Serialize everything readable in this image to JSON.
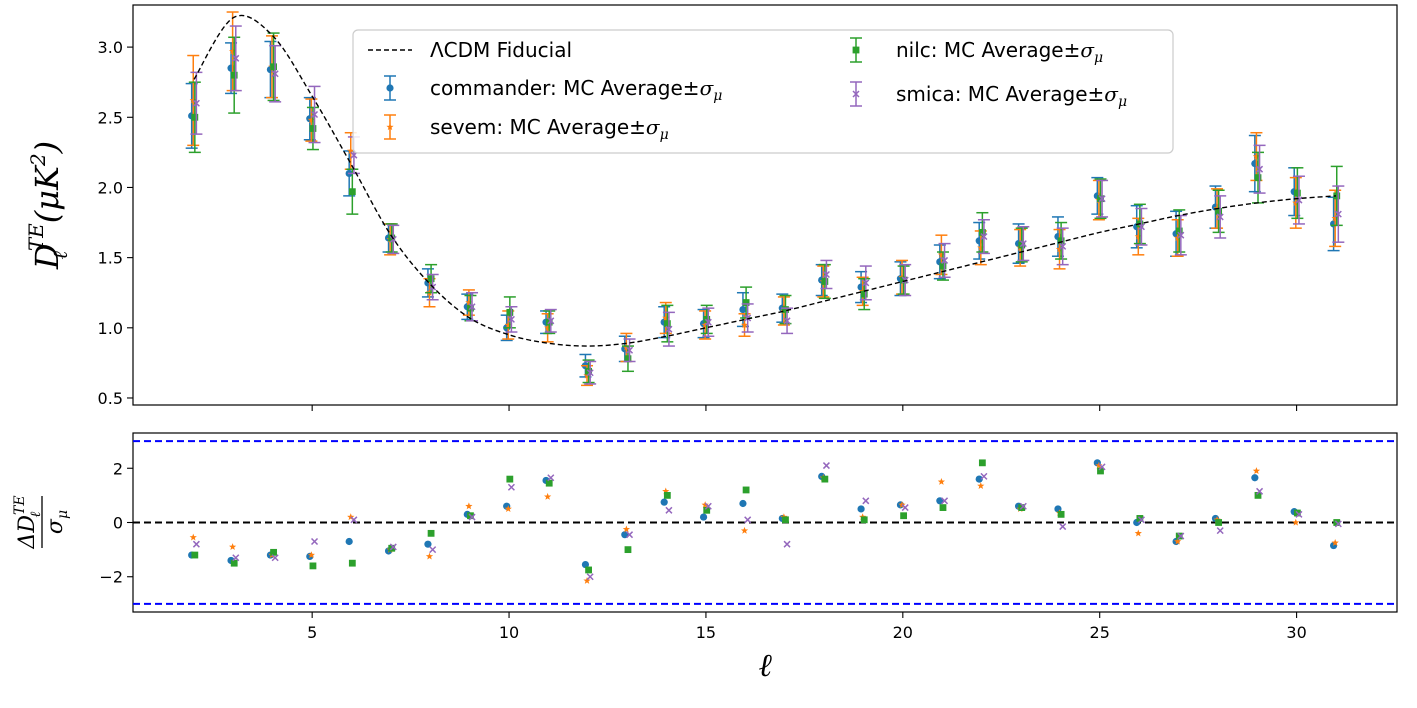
{
  "chart_data": [
    {
      "type": "scatter",
      "panel": "top",
      "title": "",
      "xlabel": "",
      "ylabel": "D_ℓ^TE(μK²)",
      "ylabel_parts": {
        "base": "D",
        "sub": "ℓ",
        "sup": "TE",
        "rest": "(μK",
        "sq": "2",
        "close": ")"
      },
      "xlim": [
        0.45,
        32.55
      ],
      "ylim": [
        0.45,
        3.3
      ],
      "xticks": [
        5,
        10,
        15,
        20,
        25,
        30
      ],
      "yticks": [
        0.5,
        1.0,
        1.5,
        2.0,
        2.5,
        3.0
      ],
      "ytick_labels": [
        "0.5",
        "1.0",
        "1.5",
        "2.0",
        "2.5",
        "3.0"
      ],
      "legend": {
        "placement": "upper-center",
        "entries": [
          {
            "text": "ΛCDM Fiducial",
            "kind": "line"
          },
          {
            "text": "commander: MC Average±",
            "sigma": "σ",
            "sub": "μ",
            "kind": "commander"
          },
          {
            "text": "sevem: MC Average±",
            "sigma": "σ",
            "sub": "μ",
            "kind": "sevem"
          },
          {
            "text": "nilc: MC Average±",
            "sigma": "σ",
            "sub": "μ",
            "kind": "nilc"
          },
          {
            "text": "smica: MC Average±",
            "sigma": "σ",
            "sub": "μ",
            "kind": "smica"
          }
        ]
      },
      "fiducial": {
        "name": "ΛCDM Fiducial",
        "x": [
          2,
          3,
          4,
          5,
          6,
          7,
          8,
          9,
          10,
          11,
          12,
          13,
          14,
          15,
          16,
          17,
          18,
          19,
          20,
          21,
          22,
          23,
          24,
          25,
          26,
          27,
          28,
          29,
          30,
          31
        ],
        "y": [
          2.77,
          3.21,
          3.08,
          2.65,
          2.16,
          1.66,
          1.31,
          1.07,
          0.95,
          0.89,
          0.87,
          0.89,
          0.94,
          1.0,
          1.06,
          1.12,
          1.19,
          1.26,
          1.33,
          1.4,
          1.47,
          1.54,
          1.61,
          1.68,
          1.74,
          1.8,
          1.85,
          1.89,
          1.92,
          1.94
        ]
      },
      "series": [
        {
          "name": "commander",
          "color": "#1f77b4",
          "marker": "circle",
          "offset": -0.06,
          "x": [
            2,
            3,
            4,
            5,
            6,
            7,
            8,
            9,
            10,
            11,
            12,
            13,
            14,
            15,
            16,
            17,
            18,
            19,
            20,
            21,
            22,
            23,
            24,
            25,
            26,
            27,
            28,
            29,
            30,
            31
          ],
          "y": [
            2.51,
            2.85,
            2.84,
            2.49,
            2.1,
            1.64,
            1.32,
            1.15,
            1.0,
            1.04,
            0.73,
            0.85,
            1.04,
            1.03,
            1.13,
            1.14,
            1.34,
            1.29,
            1.35,
            1.47,
            1.62,
            1.6,
            1.65,
            1.94,
            1.72,
            1.67,
            1.86,
            2.17,
            1.97,
            1.74
          ],
          "err": [
            0.23,
            0.18,
            0.2,
            0.15,
            0.16,
            0.1,
            0.1,
            0.09,
            0.09,
            0.08,
            0.08,
            0.09,
            0.11,
            0.1,
            0.12,
            0.1,
            0.11,
            0.11,
            0.12,
            0.12,
            0.13,
            0.14,
            0.14,
            0.13,
            0.15,
            0.16,
            0.15,
            0.2,
            0.17,
            0.19
          ]
        },
        {
          "name": "sevem",
          "color": "#ff7f0e",
          "marker": "star",
          "offset": -0.02,
          "x": [
            2,
            3,
            4,
            5,
            6,
            7,
            8,
            9,
            10,
            11,
            12,
            13,
            14,
            15,
            16,
            17,
            18,
            19,
            20,
            21,
            22,
            23,
            24,
            25,
            26,
            27,
            28,
            29,
            30,
            31
          ],
          "y": [
            2.62,
            2.97,
            2.86,
            2.48,
            2.26,
            1.63,
            1.25,
            1.18,
            1.02,
            1.0,
            0.66,
            0.86,
            1.07,
            1.02,
            1.02,
            1.12,
            1.33,
            1.26,
            1.36,
            1.52,
            1.57,
            1.57,
            1.56,
            1.91,
            1.65,
            1.64,
            1.85,
            2.22,
            1.89,
            1.78
          ],
          "err": [
            0.32,
            0.28,
            0.22,
            0.15,
            0.13,
            0.11,
            0.1,
            0.09,
            0.1,
            0.1,
            0.07,
            0.1,
            0.11,
            0.1,
            0.08,
            0.1,
            0.11,
            0.1,
            0.12,
            0.14,
            0.12,
            0.13,
            0.14,
            0.14,
            0.13,
            0.13,
            0.14,
            0.17,
            0.18,
            0.2
          ]
        },
        {
          "name": "nilc",
          "color": "#2ca02c",
          "marker": "square",
          "offset": 0.02,
          "x": [
            2,
            3,
            4,
            5,
            6,
            7,
            8,
            9,
            10,
            11,
            12,
            13,
            14,
            15,
            16,
            17,
            18,
            19,
            20,
            21,
            22,
            23,
            24,
            25,
            26,
            27,
            28,
            29,
            30,
            31
          ],
          "y": [
            2.5,
            2.8,
            2.86,
            2.42,
            1.97,
            1.64,
            1.35,
            1.14,
            1.11,
            1.04,
            0.69,
            0.78,
            1.03,
            1.06,
            1.18,
            1.13,
            1.33,
            1.24,
            1.34,
            1.44,
            1.68,
            1.59,
            1.62,
            1.92,
            1.74,
            1.69,
            1.83,
            2.07,
            1.96,
            1.94
          ],
          "err": [
            0.25,
            0.27,
            0.24,
            0.15,
            0.16,
            0.1,
            0.1,
            0.09,
            0.11,
            0.08,
            0.08,
            0.09,
            0.13,
            0.1,
            0.11,
            0.1,
            0.12,
            0.11,
            0.1,
            0.1,
            0.14,
            0.12,
            0.13,
            0.14,
            0.14,
            0.15,
            0.15,
            0.18,
            0.18,
            0.21
          ]
        },
        {
          "name": "smica",
          "color": "#9467bd",
          "marker": "x",
          "offset": 0.06,
          "x": [
            2,
            3,
            4,
            5,
            6,
            7,
            8,
            9,
            10,
            11,
            12,
            13,
            14,
            15,
            16,
            17,
            18,
            19,
            20,
            21,
            22,
            23,
            24,
            25,
            26,
            27,
            28,
            29,
            30,
            31
          ],
          "y": [
            2.6,
            2.92,
            2.81,
            2.52,
            2.23,
            1.63,
            1.29,
            1.15,
            1.06,
            1.05,
            0.68,
            0.84,
            0.99,
            1.04,
            1.07,
            1.05,
            1.38,
            1.32,
            1.34,
            1.48,
            1.65,
            1.6,
            1.58,
            1.92,
            1.72,
            1.66,
            1.79,
            2.13,
            1.91,
            1.81
          ],
          "err": [
            0.22,
            0.23,
            0.2,
            0.2,
            0.13,
            0.1,
            0.09,
            0.1,
            0.09,
            0.08,
            0.08,
            0.08,
            0.12,
            0.1,
            0.1,
            0.09,
            0.1,
            0.12,
            0.11,
            0.12,
            0.12,
            0.12,
            0.13,
            0.13,
            0.13,
            0.14,
            0.15,
            0.17,
            0.17,
            0.2
          ]
        }
      ]
    },
    {
      "type": "scatter",
      "panel": "bottom",
      "title": "",
      "xlabel": "ℓ",
      "ylabel": "ΔD_ℓ^TE / σ_μ",
      "ylabel_parts": {
        "num_base": "ΔD",
        "num_sub": "ℓ",
        "num_sup": "TE",
        "den_base": "σ",
        "den_sub": "μ"
      },
      "xlim": [
        0.45,
        32.55
      ],
      "ylim": [
        -3.3,
        3.3
      ],
      "xticks": [
        5,
        10,
        15,
        20,
        25,
        30
      ],
      "xtick_labels": [
        "5",
        "10",
        "15",
        "20",
        "25",
        "30"
      ],
      "yticks": [
        -2,
        0,
        2
      ],
      "ytick_labels": [
        "−2",
        "0",
        "2"
      ],
      "reference_lines": [
        {
          "y": 0,
          "color": "#000000",
          "style": "dashed"
        },
        {
          "y": 3,
          "color": "#0000ff",
          "style": "dashed"
        },
        {
          "y": -3,
          "color": "#0000ff",
          "style": "dashed"
        }
      ],
      "series": [
        {
          "name": "commander",
          "color": "#1f77b4",
          "marker": "circle",
          "offset": -0.06,
          "x": [
            2,
            3,
            4,
            5,
            6,
            7,
            8,
            9,
            10,
            11,
            12,
            13,
            14,
            15,
            16,
            17,
            18,
            19,
            20,
            21,
            22,
            23,
            24,
            25,
            26,
            27,
            28,
            29,
            30,
            31
          ],
          "y": [
            -1.2,
            -1.4,
            -1.2,
            -1.25,
            -0.7,
            -1.05,
            -0.8,
            0.3,
            0.6,
            1.55,
            -1.55,
            -0.45,
            0.75,
            0.2,
            0.7,
            0.15,
            1.7,
            0.5,
            0.65,
            0.8,
            1.6,
            0.6,
            0.5,
            2.2,
            0.0,
            -0.7,
            0.15,
            1.65,
            0.4,
            -0.85
          ]
        },
        {
          "name": "sevem",
          "color": "#ff7f0e",
          "marker": "star",
          "offset": -0.02,
          "x": [
            2,
            3,
            4,
            5,
            6,
            7,
            8,
            9,
            10,
            11,
            12,
            13,
            14,
            15,
            16,
            17,
            18,
            19,
            20,
            21,
            22,
            23,
            24,
            25,
            26,
            27,
            28,
            29,
            30,
            31
          ],
          "y": [
            -0.55,
            -0.9,
            -1.2,
            -1.2,
            0.2,
            -1.0,
            -1.25,
            0.6,
            0.5,
            0.95,
            -2.15,
            -0.25,
            1.15,
            0.65,
            -0.3,
            0.2,
            1.65,
            0.2,
            0.65,
            1.5,
            1.35,
            0.5,
            0.35,
            2.1,
            -0.4,
            -0.7,
            0.1,
            1.9,
            0.0,
            -0.75
          ]
        },
        {
          "name": "nilc",
          "color": "#2ca02c",
          "marker": "square",
          "offset": 0.02,
          "x": [
            2,
            3,
            4,
            5,
            6,
            7,
            8,
            9,
            10,
            11,
            12,
            13,
            14,
            15,
            16,
            17,
            18,
            19,
            20,
            21,
            22,
            23,
            24,
            25,
            26,
            27,
            28,
            29,
            30,
            31
          ],
          "y": [
            -1.2,
            -1.5,
            -1.1,
            -1.6,
            -1.5,
            -0.95,
            -0.4,
            0.25,
            1.6,
            1.45,
            -1.75,
            -1.0,
            1.0,
            0.45,
            1.2,
            0.1,
            1.6,
            0.1,
            0.25,
            0.55,
            2.2,
            0.55,
            0.3,
            1.9,
            0.15,
            -0.5,
            0.0,
            1.0,
            0.35,
            0.0
          ]
        },
        {
          "name": "smica",
          "color": "#9467bd",
          "marker": "x",
          "offset": 0.06,
          "x": [
            2,
            3,
            4,
            5,
            6,
            7,
            8,
            9,
            10,
            11,
            12,
            13,
            14,
            15,
            16,
            17,
            18,
            19,
            20,
            21,
            22,
            23,
            24,
            25,
            26,
            27,
            28,
            29,
            30,
            31
          ],
          "y": [
            -0.8,
            -1.3,
            -1.3,
            -0.7,
            0.1,
            -0.9,
            -1.0,
            0.2,
            1.3,
            1.65,
            -2.0,
            -0.45,
            0.45,
            0.6,
            0.1,
            -0.8,
            2.1,
            0.8,
            0.55,
            0.8,
            1.7,
            0.6,
            -0.15,
            2.05,
            0.1,
            -0.5,
            -0.3,
            1.15,
            0.3,
            -0.05
          ]
        }
      ]
    }
  ]
}
